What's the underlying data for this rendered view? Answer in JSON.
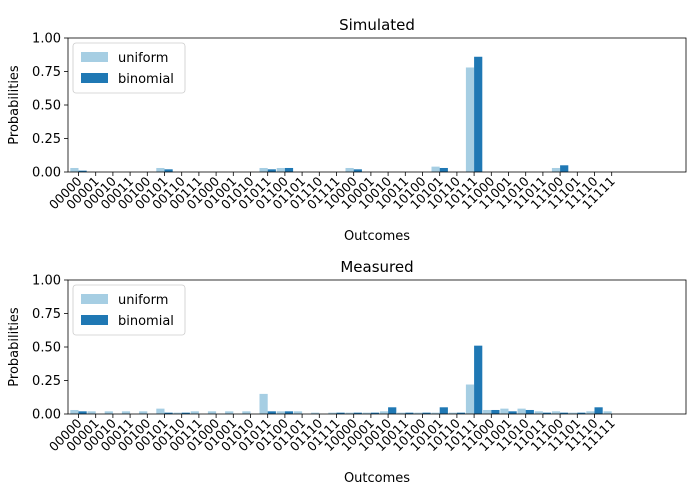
{
  "chart_data": [
    {
      "type": "bar",
      "title": "Simulated",
      "xlabel": "Outcomes",
      "ylabel": "Probabilities",
      "ylim": [
        0,
        1.0
      ],
      "yticks": [
        "0.00",
        "0.25",
        "0.50",
        "0.75",
        "1.00"
      ],
      "grid": false,
      "legend_position": "upper-left",
      "categories": [
        "00000",
        "00001",
        "00010",
        "00011",
        "00100",
        "00101",
        "00110",
        "00111",
        "01000",
        "01001",
        "01010",
        "01011",
        "01100",
        "01101",
        "01110",
        "01111",
        "10000",
        "10001",
        "10010",
        "10011",
        "10100",
        "10101",
        "10110",
        "10111",
        "11000",
        "11001",
        "11010",
        "11011",
        "11100",
        "11101",
        "11110",
        "11111"
      ],
      "series": [
        {
          "name": "uniform",
          "color": "#a6cee3",
          "values": [
            0.03,
            0,
            0,
            0,
            0,
            0.03,
            0,
            0,
            0,
            0,
            0,
            0.03,
            0.03,
            0,
            0,
            0,
            0.03,
            0,
            0,
            0,
            0,
            0.04,
            0,
            0.78,
            0,
            0,
            0,
            0,
            0.03,
            0,
            0,
            0
          ]
        },
        {
          "name": "binomial",
          "color": "#1f78b4",
          "values": [
            0.01,
            0,
            0,
            0,
            0,
            0.02,
            0,
            0,
            0,
            0,
            0,
            0.02,
            0.03,
            0,
            0,
            0,
            0.02,
            0,
            0,
            0,
            0,
            0.03,
            0,
            0.86,
            0,
            0,
            0,
            0,
            0.05,
            0,
            0,
            0
          ]
        }
      ]
    },
    {
      "type": "bar",
      "title": "Measured",
      "xlabel": "Outcomes",
      "ylabel": "Probabilities",
      "ylim": [
        0,
        1.0
      ],
      "yticks": [
        "0.00",
        "0.25",
        "0.50",
        "0.75",
        "1.00"
      ],
      "grid": false,
      "legend_position": "upper-left",
      "categories": [
        "00000",
        "00001",
        "00010",
        "00011",
        "00100",
        "00101",
        "00110",
        "00111",
        "01000",
        "01001",
        "01010",
        "01011",
        "01100",
        "01101",
        "01110",
        "01111",
        "10000",
        "10001",
        "10010",
        "10011",
        "10100",
        "10101",
        "10110",
        "10111",
        "11000",
        "11001",
        "11010",
        "11011",
        "11100",
        "11101",
        "11110",
        "11111"
      ],
      "series": [
        {
          "name": "uniform",
          "color": "#a6cee3",
          "values": [
            0.03,
            0.02,
            0.02,
            0.02,
            0.02,
            0.04,
            0.01,
            0.02,
            0.02,
            0.02,
            0.02,
            0.15,
            0.02,
            0.02,
            0.01,
            0.01,
            0.01,
            0.01,
            0.02,
            0.01,
            0.01,
            0.01,
            0.01,
            0.22,
            0.03,
            0.04,
            0.04,
            0.02,
            0.02,
            0.01,
            0.02,
            0.02
          ]
        },
        {
          "name": "binomial",
          "color": "#1f78b4",
          "values": [
            0.02,
            0,
            0,
            0,
            0,
            0.01,
            0.01,
            0,
            0,
            0,
            0,
            0.02,
            0.02,
            0,
            0,
            0.01,
            0.01,
            0.01,
            0.05,
            0.01,
            0.01,
            0.05,
            0.01,
            0.51,
            0.03,
            0.02,
            0.03,
            0.01,
            0.01,
            0.01,
            0.05,
            0
          ]
        }
      ]
    }
  ]
}
